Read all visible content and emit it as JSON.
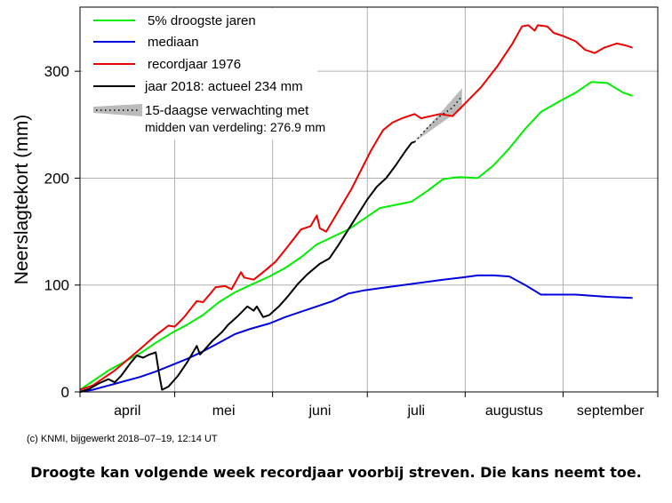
{
  "chart_data": {
    "type": "line",
    "title": "",
    "xlabel": "",
    "ylabel": "Neerslagtekort (mm)",
    "ylim": [
      0,
      360
    ],
    "yticks": [
      0,
      100,
      200,
      300
    ],
    "grid": true,
    "legend_position": "top-left",
    "months": [
      "april",
      "mei",
      "juni",
      "juli",
      "augustus",
      "september"
    ],
    "xlim": [
      "2018-04-01",
      "2018-09-30"
    ],
    "series": [
      {
        "name": "5% droogste jaren",
        "color": "#00ee00",
        "points": [
          [
            "04-01",
            2
          ],
          [
            "04-05",
            10
          ],
          [
            "04-10",
            20
          ],
          [
            "04-15",
            28
          ],
          [
            "04-20",
            36
          ],
          [
            "04-25",
            46
          ],
          [
            "04-30",
            55
          ],
          [
            "05-05",
            63
          ],
          [
            "05-10",
            72
          ],
          [
            "05-15",
            84
          ],
          [
            "05-20",
            93
          ],
          [
            "05-25",
            100
          ],
          [
            "05-31",
            108
          ],
          [
            "06-05",
            116
          ],
          [
            "06-10",
            126
          ],
          [
            "06-15",
            138
          ],
          [
            "06-20",
            145
          ],
          [
            "06-25",
            152
          ],
          [
            "06-30",
            162
          ],
          [
            "07-05",
            172
          ],
          [
            "07-10",
            175
          ],
          [
            "07-15",
            178
          ],
          [
            "07-20",
            188
          ],
          [
            "07-25",
            199
          ],
          [
            "07-30",
            201
          ],
          [
            "08-05",
            200
          ],
          [
            "08-10",
            212
          ],
          [
            "08-15",
            228
          ],
          [
            "08-20",
            246
          ],
          [
            "08-25",
            262
          ],
          [
            "08-31",
            272
          ],
          [
            "09-05",
            280
          ],
          [
            "09-10",
            290
          ],
          [
            "09-15",
            289
          ],
          [
            "09-20",
            280
          ],
          [
            "09-23",
            277
          ]
        ]
      },
      {
        "name": "mediaan",
        "color": "#0000dd",
        "points": [
          [
            "04-01",
            0
          ],
          [
            "04-05",
            2
          ],
          [
            "04-10",
            6
          ],
          [
            "04-15",
            10
          ],
          [
            "04-20",
            14
          ],
          [
            "04-25",
            19
          ],
          [
            "04-30",
            25
          ],
          [
            "05-05",
            31
          ],
          [
            "05-10",
            38
          ],
          [
            "05-15",
            46
          ],
          [
            "05-20",
            54
          ],
          [
            "05-25",
            59
          ],
          [
            "05-31",
            64
          ],
          [
            "06-05",
            70
          ],
          [
            "06-10",
            75
          ],
          [
            "06-15",
            80
          ],
          [
            "06-20",
            85
          ],
          [
            "06-25",
            92
          ],
          [
            "06-30",
            95
          ],
          [
            "07-05",
            97
          ],
          [
            "07-10",
            99
          ],
          [
            "07-15",
            101
          ],
          [
            "07-20",
            103
          ],
          [
            "07-25",
            105
          ],
          [
            "07-31",
            107
          ],
          [
            "08-05",
            109
          ],
          [
            "08-10",
            109
          ],
          [
            "08-15",
            108
          ],
          [
            "08-20",
            100
          ],
          [
            "08-25",
            91
          ],
          [
            "08-31",
            91
          ],
          [
            "09-05",
            91
          ],
          [
            "09-10",
            90
          ],
          [
            "09-15",
            89
          ],
          [
            "09-23",
            88
          ]
        ]
      },
      {
        "name": "recordjaar 1976",
        "color": "#ee0000",
        "points": [
          [
            "04-01",
            2
          ],
          [
            "04-05",
            6
          ],
          [
            "04-08",
            12
          ],
          [
            "04-12",
            20
          ],
          [
            "04-16",
            30
          ],
          [
            "04-20",
            40
          ],
          [
            "04-25",
            53
          ],
          [
            "04-29",
            62
          ],
          [
            "05-01",
            61
          ],
          [
            "05-04",
            70
          ],
          [
            "05-08",
            85
          ],
          [
            "05-10",
            84
          ],
          [
            "05-14",
            98
          ],
          [
            "05-17",
            99
          ],
          [
            "05-19",
            96
          ],
          [
            "05-22",
            112
          ],
          [
            "05-23",
            107
          ],
          [
            "05-26",
            105
          ],
          [
            "05-29",
            112
          ],
          [
            "06-02",
            122
          ],
          [
            "06-05",
            133
          ],
          [
            "06-10",
            152
          ],
          [
            "06-13",
            155
          ],
          [
            "06-15",
            165
          ],
          [
            "06-16",
            153
          ],
          [
            "06-18",
            150
          ],
          [
            "06-22",
            170
          ],
          [
            "06-26",
            190
          ],
          [
            "07-02",
            225
          ],
          [
            "07-06",
            245
          ],
          [
            "07-09",
            252
          ],
          [
            "07-12",
            256
          ],
          [
            "07-16",
            260
          ],
          [
            "07-18",
            256
          ],
          [
            "07-21",
            258
          ],
          [
            "07-24",
            260
          ],
          [
            "07-28",
            258
          ],
          [
            "08-01",
            270
          ],
          [
            "08-06",
            285
          ],
          [
            "08-11",
            304
          ],
          [
            "08-16",
            326
          ],
          [
            "08-19",
            342
          ],
          [
            "08-21",
            343
          ],
          [
            "08-23",
            338
          ],
          [
            "08-24",
            343
          ],
          [
            "08-27",
            342
          ],
          [
            "08-29",
            336
          ],
          [
            "09-01",
            333
          ],
          [
            "09-05",
            328
          ],
          [
            "09-08",
            320
          ],
          [
            "09-11",
            317
          ],
          [
            "09-14",
            322
          ],
          [
            "09-18",
            326
          ],
          [
            "09-21",
            324
          ],
          [
            "09-23",
            322
          ]
        ]
      },
      {
        "name": "jaar 2018: actueel 234 mm",
        "color": "#000000",
        "points": [
          [
            "04-01",
            0
          ],
          [
            "04-04",
            3
          ],
          [
            "04-07",
            8
          ],
          [
            "04-10",
            12
          ],
          [
            "04-12",
            9
          ],
          [
            "04-14",
            15
          ],
          [
            "04-17",
            27
          ],
          [
            "04-19",
            34
          ],
          [
            "04-21",
            32
          ],
          [
            "04-23",
            35
          ],
          [
            "04-25",
            37
          ],
          [
            "04-26",
            18
          ],
          [
            "04-27",
            2
          ],
          [
            "04-29",
            5
          ],
          [
            "05-02",
            15
          ],
          [
            "05-05",
            28
          ],
          [
            "05-07",
            38
          ],
          [
            "05-08",
            43
          ],
          [
            "05-09",
            35
          ],
          [
            "05-10",
            38
          ],
          [
            "05-13",
            48
          ],
          [
            "05-16",
            56
          ],
          [
            "05-18",
            63
          ],
          [
            "05-21",
            71
          ],
          [
            "05-24",
            80
          ],
          [
            "05-26",
            76
          ],
          [
            "05-27",
            80
          ],
          [
            "05-29",
            70
          ],
          [
            "05-31",
            72
          ],
          [
            "06-03",
            80
          ],
          [
            "06-06",
            90
          ],
          [
            "06-09",
            101
          ],
          [
            "06-12",
            110
          ],
          [
            "06-16",
            120
          ],
          [
            "06-19",
            125
          ],
          [
            "06-22",
            138
          ],
          [
            "06-25",
            152
          ],
          [
            "06-28",
            166
          ],
          [
            "07-01",
            180
          ],
          [
            "07-04",
            192
          ],
          [
            "07-07",
            200
          ],
          [
            "07-10",
            212
          ],
          [
            "07-13",
            225
          ],
          [
            "07-15",
            233
          ],
          [
            "07-16",
            234
          ]
        ]
      },
      {
        "name": "15-daagse verwachting met midden van verdeling: 276.9 mm",
        "color": "#999999",
        "points": [
          [
            "07-16",
            234
          ],
          [
            "07-20",
            247
          ],
          [
            "07-24",
            258
          ],
          [
            "07-28",
            266
          ],
          [
            "07-31",
            276.9
          ]
        ]
      }
    ]
  },
  "credit": "(c) KNMI, bijgewerkt 2018–07–19, 12:14 UT",
  "caption": "Droogte kan volgende week recordjaar voorbij streven. Die kans neemt toe."
}
